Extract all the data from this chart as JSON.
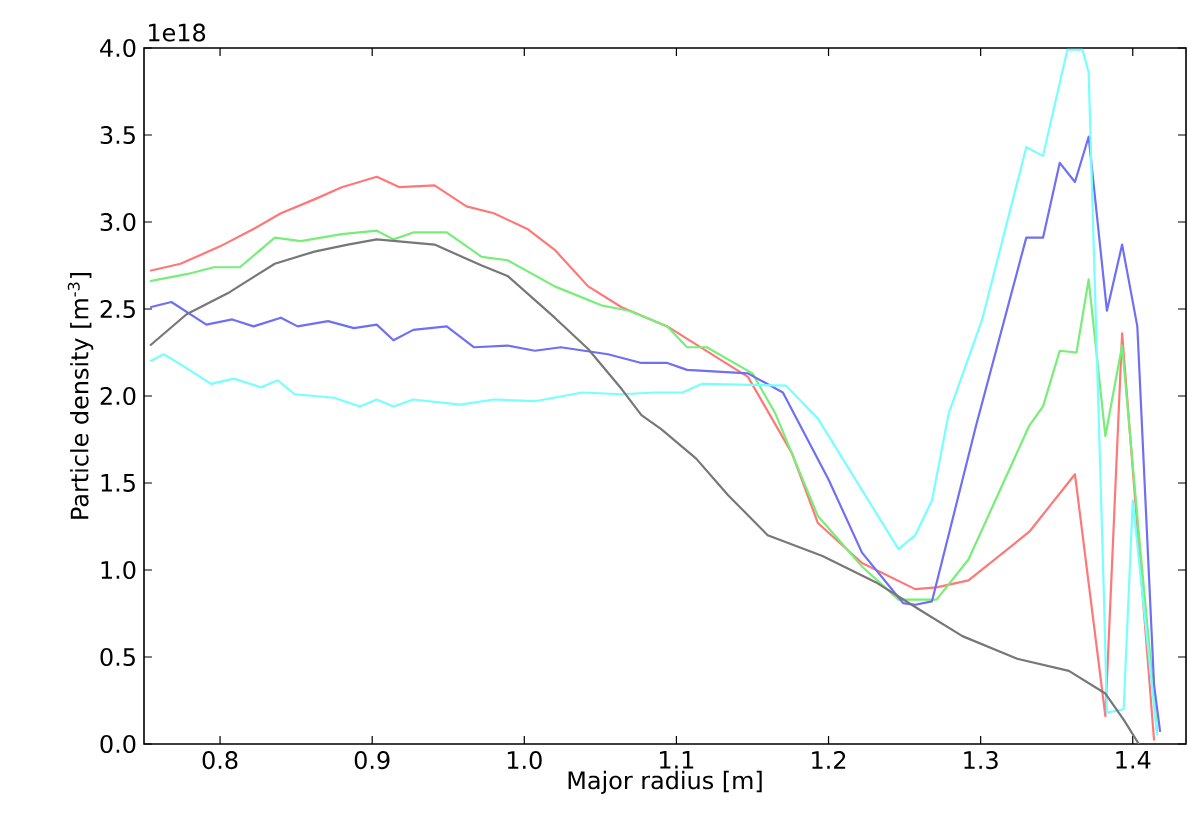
{
  "chart_data": {
    "type": "line",
    "xlabel": "Major radius [m]",
    "ylabel": "Particle density [m$^{-3}$]",
    "annotations": [
      "1e18"
    ],
    "xlim": [
      0.75,
      1.435
    ],
    "ylim": [
      0,
      4.0
    ],
    "xticks": [
      {
        "value": 0.8,
        "label": "0.8"
      },
      {
        "value": 0.9,
        "label": "0.9"
      },
      {
        "value": 1.0,
        "label": "1.0"
      },
      {
        "value": 1.1,
        "label": "1.1"
      },
      {
        "value": 1.2,
        "label": "1.2"
      },
      {
        "value": 1.3,
        "label": "1.3"
      },
      {
        "value": 1.4,
        "label": "1.4"
      }
    ],
    "yticks": [
      {
        "value": 0,
        "label": "0.0"
      },
      {
        "value": 0.5,
        "label": "0.5"
      },
      {
        "value": 1.0,
        "label": "1.0"
      },
      {
        "value": 1.5,
        "label": "1.5"
      },
      {
        "value": 2.0,
        "label": "2.0"
      },
      {
        "value": 2.5,
        "label": "2.5"
      },
      {
        "value": 3.0,
        "label": "3.0"
      },
      {
        "value": 3.5,
        "label": "3.5"
      },
      {
        "value": 4.0,
        "label": "4.0"
      }
    ],
    "marker": "none",
    "line_style": "solid",
    "series": [
      {
        "color": "#ff7777",
        "x": [
          0.754,
          0.774,
          0.8,
          0.822,
          0.84,
          0.862,
          0.88,
          0.903,
          0.918,
          0.941,
          0.962,
          0.98,
          1.002,
          1.02,
          1.042,
          1.064,
          1.094,
          1.147,
          1.176,
          1.193,
          1.222,
          1.257,
          1.271,
          1.292,
          1.332,
          1.362,
          1.382,
          1.393,
          1.414
        ],
        "values": [
          2.72,
          2.76,
          2.86,
          2.96,
          3.05,
          3.13,
          3.2,
          3.26,
          3.2,
          3.21,
          3.09,
          3.05,
          2.96,
          2.84,
          2.63,
          2.51,
          2.4,
          2.11,
          1.67,
          1.27,
          1.04,
          0.89,
          0.9,
          0.94,
          1.22,
          1.55,
          0.16,
          2.36,
          0.02
        ]
      },
      {
        "color": "#77ee77",
        "x": [
          0.754,
          0.778,
          0.796,
          0.813,
          0.836,
          0.853,
          0.88,
          0.903,
          0.914,
          0.927,
          0.949,
          0.972,
          0.989,
          1.02,
          1.051,
          1.069,
          1.094,
          1.107,
          1.12,
          1.15,
          1.165,
          1.193,
          1.222,
          1.246,
          1.271,
          1.292,
          1.332,
          1.341,
          1.352,
          1.363,
          1.371,
          1.382,
          1.393,
          1.404,
          1.416
        ],
        "values": [
          2.66,
          2.7,
          2.74,
          2.74,
          2.91,
          2.89,
          2.93,
          2.95,
          2.9,
          2.94,
          2.94,
          2.8,
          2.78,
          2.63,
          2.52,
          2.49,
          2.4,
          2.28,
          2.28,
          2.13,
          1.9,
          1.31,
          1.02,
          0.83,
          0.83,
          1.06,
          1.83,
          1.94,
          2.26,
          2.25,
          2.67,
          1.77,
          2.29,
          1.21,
          0.07
        ]
      },
      {
        "color": "#6f6ff5",
        "x": [
          0.754,
          0.768,
          0.791,
          0.808,
          0.822,
          0.84,
          0.851,
          0.871,
          0.888,
          0.903,
          0.914,
          0.927,
          0.949,
          0.967,
          0.989,
          1.007,
          1.024,
          1.055,
          1.077,
          1.094,
          1.107,
          1.147,
          1.17,
          1.2,
          1.222,
          1.249,
          1.257,
          1.268,
          1.297,
          1.33,
          1.341,
          1.352,
          1.362,
          1.371,
          1.383,
          1.393,
          1.403,
          1.414,
          1.418
        ],
        "values": [
          2.51,
          2.54,
          2.41,
          2.44,
          2.4,
          2.45,
          2.4,
          2.43,
          2.39,
          2.41,
          2.32,
          2.38,
          2.4,
          2.28,
          2.29,
          2.26,
          2.28,
          2.24,
          2.19,
          2.19,
          2.15,
          2.13,
          2.02,
          1.52,
          1.1,
          0.81,
          0.8,
          0.82,
          1.83,
          2.91,
          2.91,
          3.34,
          3.23,
          3.49,
          2.49,
          2.87,
          2.4,
          0.34,
          0.07
        ]
      },
      {
        "color": "#77ffff",
        "x": [
          0.754,
          0.763,
          0.778,
          0.794,
          0.809,
          0.827,
          0.838,
          0.849,
          0.875,
          0.892,
          0.903,
          0.914,
          0.927,
          0.958,
          0.98,
          1.007,
          1.038,
          1.064,
          1.086,
          1.104,
          1.117,
          1.172,
          1.193,
          1.246,
          1.257,
          1.268,
          1.279,
          1.301,
          1.33,
          1.341,
          1.357,
          1.367,
          1.371,
          1.381,
          1.383,
          1.394,
          1.4,
          1.416
        ],
        "values": [
          2.2,
          2.24,
          2.16,
          2.07,
          2.1,
          2.05,
          2.09,
          2.01,
          1.99,
          1.94,
          1.98,
          1.94,
          1.98,
          1.95,
          1.98,
          1.97,
          2.02,
          2.01,
          2.02,
          2.02,
          2.07,
          2.06,
          1.87,
          1.12,
          1.2,
          1.4,
          1.9,
          2.44,
          3.43,
          3.38,
          3.99,
          3.99,
          3.86,
          0.86,
          0.18,
          0.2,
          1.4,
          0.05
        ]
      },
      {
        "color": "#777777",
        "x": [
          0.754,
          0.778,
          0.805,
          0.836,
          0.862,
          0.884,
          0.903,
          0.941,
          0.972,
          0.989,
          1.02,
          1.042,
          1.064,
          1.077,
          1.09,
          1.113,
          1.134,
          1.16,
          1.196,
          1.231,
          1.262,
          1.288,
          1.324,
          1.358,
          1.382,
          1.394,
          1.404
        ],
        "values": [
          2.29,
          2.47,
          2.59,
          2.76,
          2.83,
          2.87,
          2.9,
          2.87,
          2.75,
          2.69,
          2.45,
          2.27,
          2.04,
          1.89,
          1.81,
          1.64,
          1.43,
          1.2,
          1.08,
          0.93,
          0.76,
          0.62,
          0.49,
          0.42,
          0.29,
          0.14,
          0.0
        ]
      }
    ]
  }
}
